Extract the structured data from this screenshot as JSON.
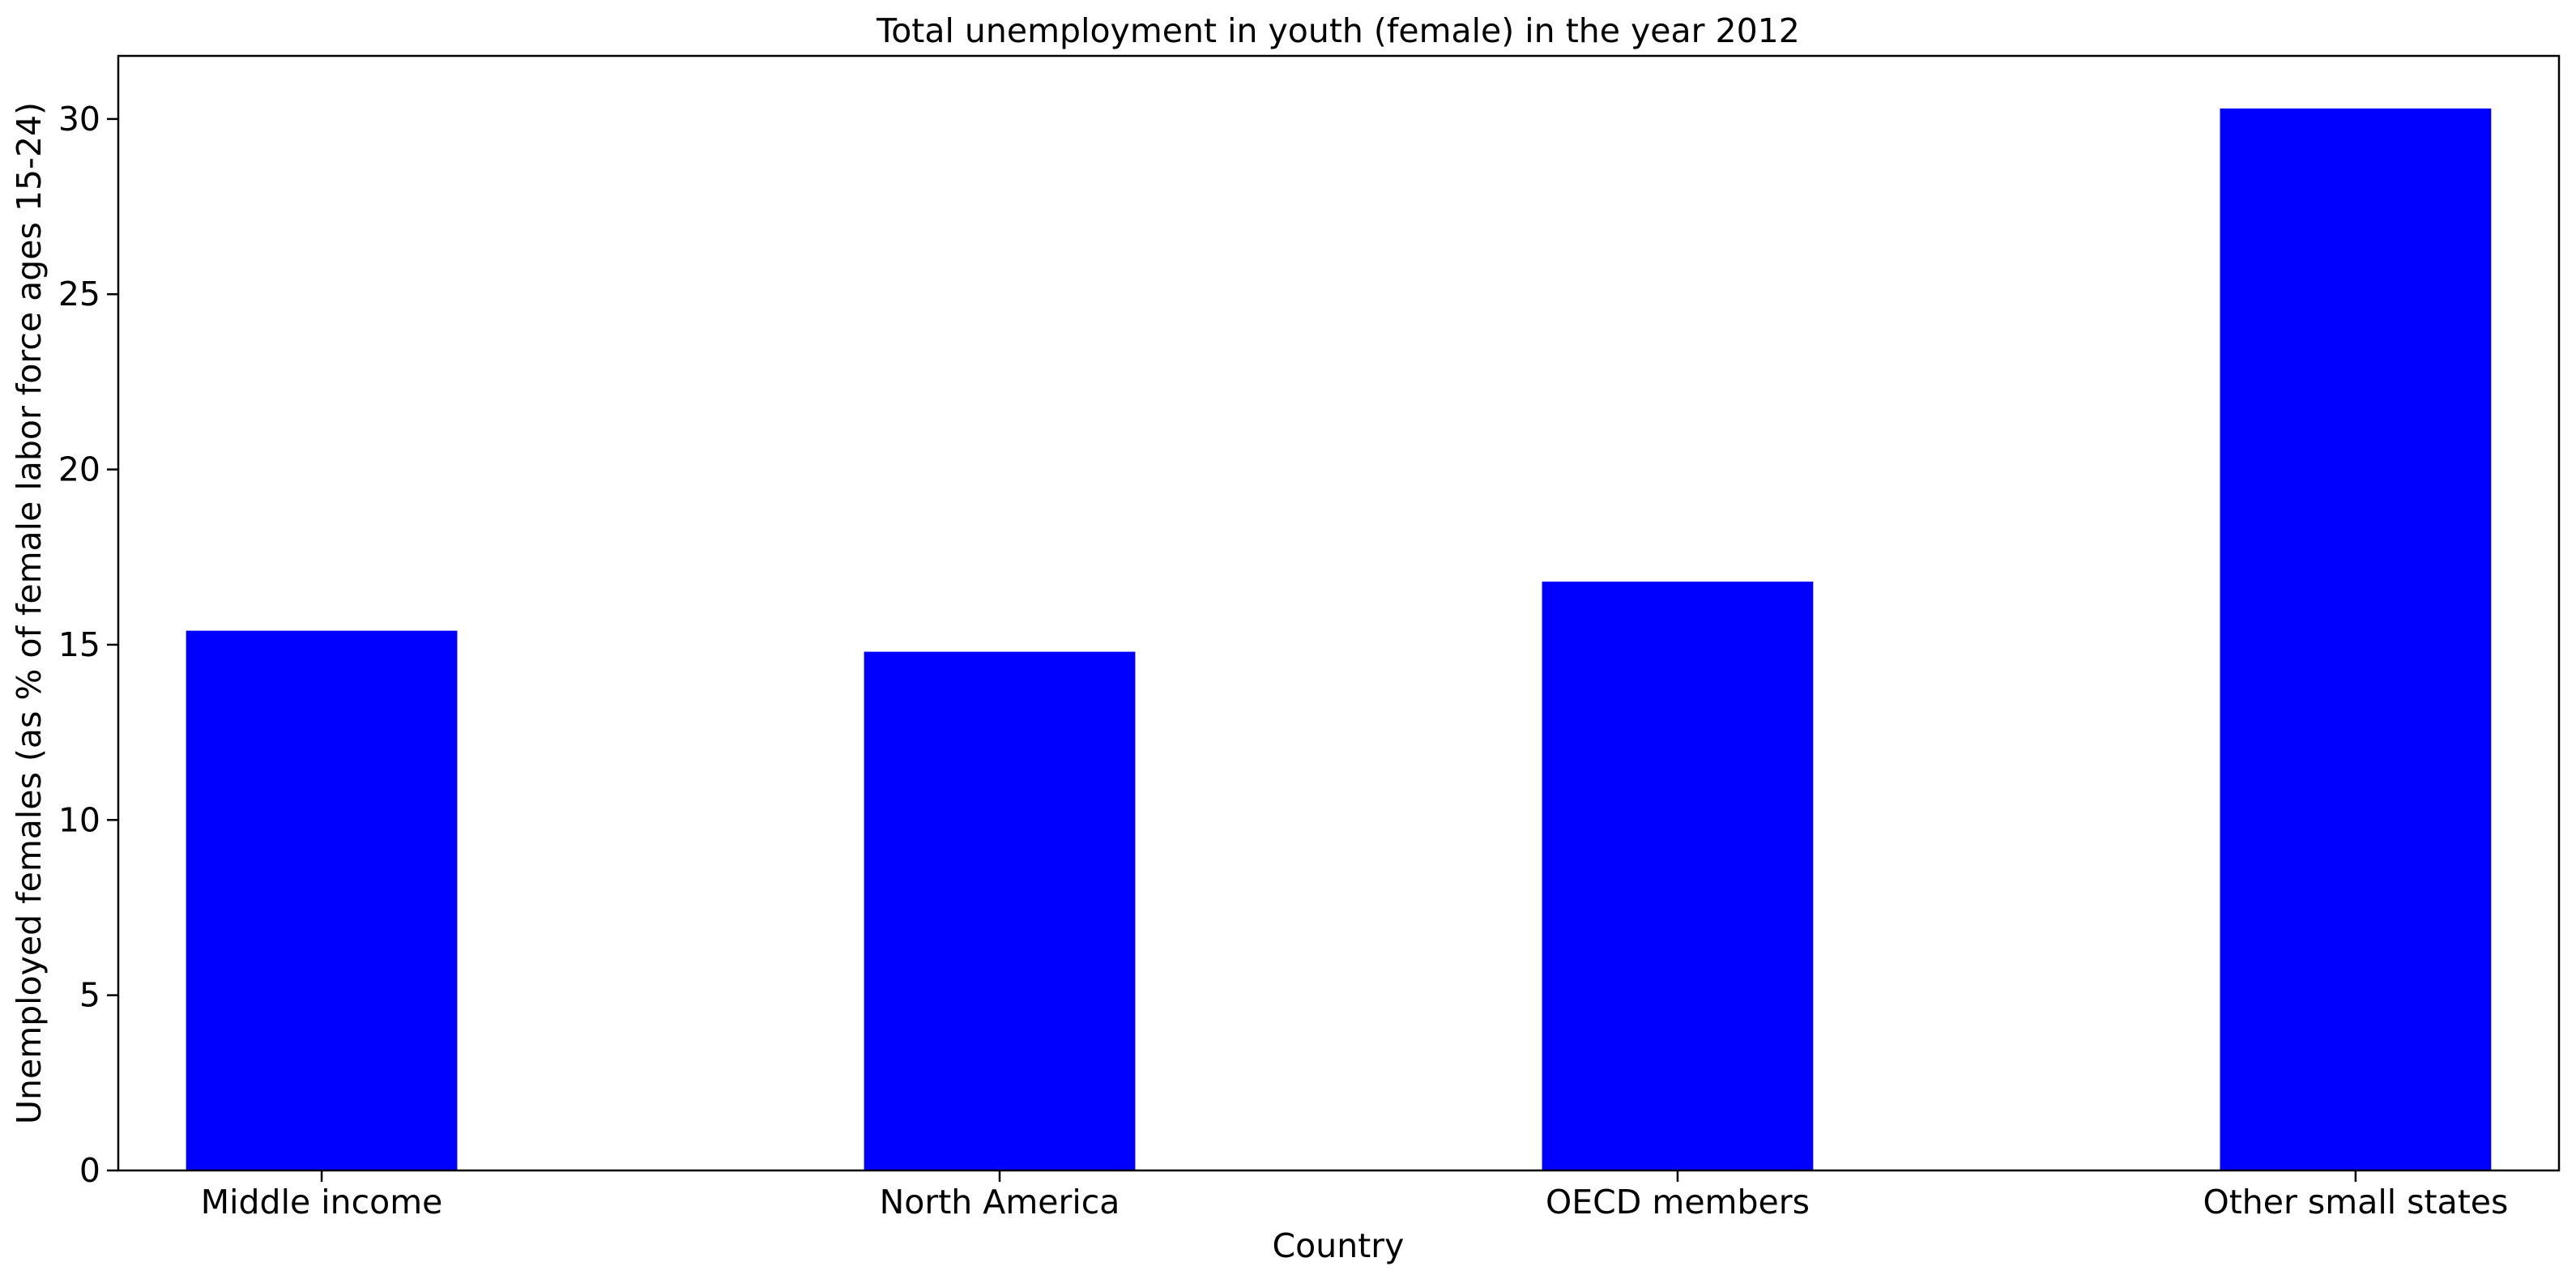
{
  "chart_data": {
    "type": "bar",
    "title": "Total unemployment in youth (female) in the year 2012",
    "xlabel": "Country",
    "ylabel": "Unemployed females (as % of female labor force ages 15-24)",
    "categories": [
      "Middle income",
      "North America",
      "OECD members",
      "Other small states"
    ],
    "values": [
      15.4,
      14.8,
      16.8,
      30.3
    ],
    "ylim": [
      0,
      31.8
    ],
    "yticks": [
      0,
      5,
      10,
      15,
      20,
      25,
      30
    ],
    "bar_color": "#0000ff",
    "grid": false,
    "legend": "none"
  }
}
